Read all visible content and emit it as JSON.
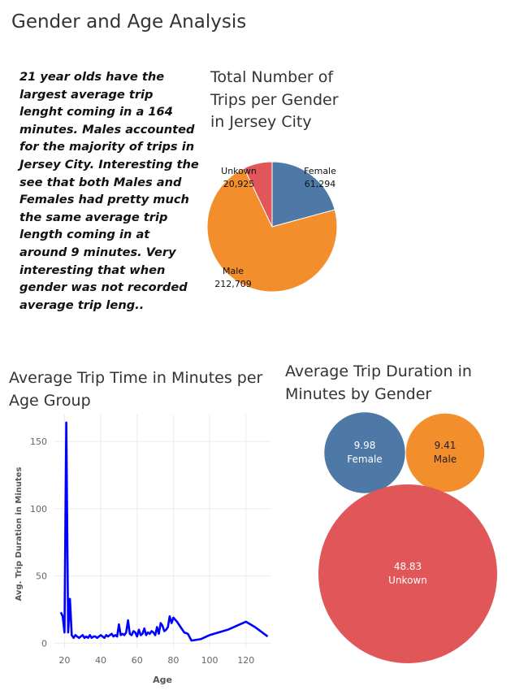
{
  "page": {
    "title": "Gender and Age Analysis",
    "insight": "21 year olds have the largest average trip lenght coming in a 164 minutes. Males accounted for the majority of trips in Jersey City. Interesting the see that both Males and Females had pretty much the same average trip length coming in at around 9 minutes. Very interesting that when gender was not recorded average trip leng.."
  },
  "chart_data": [
    {
      "type": "pie",
      "title": "Total Number of Trips per Gender in Jersey City",
      "slices": [
        {
          "label": "Female",
          "value": 61294,
          "value_label": "61,294",
          "color": "#4E79A7"
        },
        {
          "label": "Male",
          "value": 212709,
          "value_label": "212,709",
          "color": "#F28E2B"
        },
        {
          "label": "Unkown",
          "value": 20925,
          "value_label": "20,925",
          "color": "#E15759"
        }
      ]
    },
    {
      "type": "line",
      "title": "Average Trip Time in Minutes per Age Group",
      "xlabel": "Age",
      "ylabel": "Avg. Trip Duration in Minutes",
      "xlim": [
        14,
        134
      ],
      "ylim": [
        -4,
        170
      ],
      "xticks": [
        20,
        40,
        60,
        80,
        100,
        120
      ],
      "yticks": [
        0,
        50,
        100,
        150
      ],
      "color": "#0000FF",
      "series": [
        {
          "x": [
            18,
            19,
            20,
            21,
            22,
            23,
            24,
            25,
            26,
            27,
            28,
            29,
            30,
            31,
            32,
            33,
            34,
            35,
            36,
            37,
            38,
            39,
            40,
            41,
            42,
            43,
            44,
            45,
            46,
            47,
            48,
            49,
            50,
            51,
            52,
            53,
            54,
            55,
            56,
            57,
            58,
            59,
            60,
            61,
            62,
            63,
            64,
            65,
            66,
            67,
            68,
            69,
            70,
            71,
            72,
            73,
            74,
            75,
            76,
            77,
            78,
            79,
            80,
            82,
            84,
            86,
            88,
            90,
            95,
            100,
            110,
            120,
            125,
            132
          ],
          "y": [
            23,
            20,
            8,
            164,
            8,
            33,
            6,
            4,
            6,
            5,
            4,
            5,
            6,
            4,
            5,
            4,
            6,
            4,
            5,
            5,
            4,
            5,
            6,
            5,
            4,
            6,
            5,
            6,
            7,
            5,
            6,
            5,
            14,
            6,
            7,
            6,
            8,
            17,
            7,
            6,
            9,
            8,
            5,
            10,
            6,
            7,
            11,
            6,
            8,
            7,
            9,
            8,
            6,
            12,
            7,
            15,
            13,
            9,
            10,
            12,
            20,
            15,
            19,
            16,
            12,
            8,
            7,
            2,
            3,
            6,
            10,
            16,
            12,
            5
          ]
        }
      ]
    },
    {
      "type": "bubble",
      "title": "Average Trip Duration in Minutes by Gender",
      "bubbles": [
        {
          "label": "Female",
          "value": 9.98,
          "value_label": "9.98",
          "color": "#4E79A7"
        },
        {
          "label": "Male",
          "value": 9.41,
          "value_label": "9.41",
          "color": "#F28E2B"
        },
        {
          "label": "Unkown",
          "value": 48.83,
          "value_label": "48.83",
          "color": "#E15759"
        }
      ]
    }
  ]
}
